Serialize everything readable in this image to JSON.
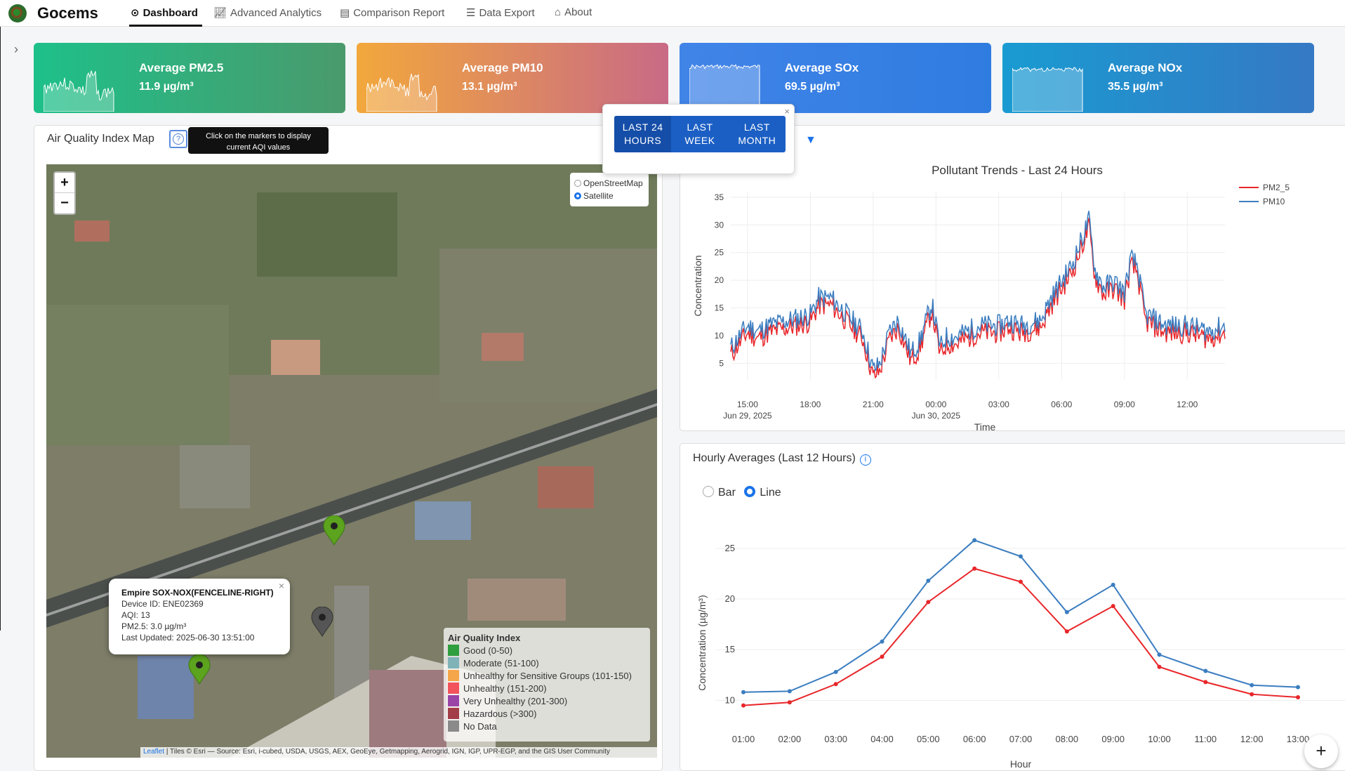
{
  "app": {
    "name": "Gocems"
  },
  "nav": [
    {
      "label": "Dashboard",
      "icon": "dashboard-icon",
      "active": true
    },
    {
      "label": "Advanced Analytics",
      "icon": "chart-line-icon"
    },
    {
      "label": "Comparison Report",
      "icon": "report-icon"
    },
    {
      "label": "Data Export",
      "icon": "database-icon"
    },
    {
      "label": "About",
      "icon": "building-icon"
    }
  ],
  "cards": [
    {
      "title": "Average PM2.5",
      "value": "11.9 µg/m³",
      "colors": [
        "#1ec08a",
        "#4a9a6c"
      ]
    },
    {
      "title": "Average PM10",
      "value": "13.1 µg/m³",
      "colors": [
        "#f2a83c",
        "#c96a86"
      ]
    },
    {
      "title": "Average SOx",
      "value": "69.5 µg/m³",
      "colors": [
        "#4184e8",
        "#2f7ce0"
      ]
    },
    {
      "title": "Average NOx",
      "value": "35.5 µg/m³",
      "colors": [
        "#1a9bd2",
        "#3579c4"
      ]
    }
  ],
  "map": {
    "title": "Air Quality Index Map",
    "help_tooltip": "Click on the markers to display current AQI values",
    "zoom_in": "+",
    "zoom_out": "−",
    "layers": [
      "OpenStreetMap",
      "Satellite"
    ],
    "selected_layer": "Satellite",
    "legend": {
      "title": "Air Quality Index",
      "items": [
        {
          "label": "Good (0-50)",
          "color": "#2e9e3e"
        },
        {
          "label": "Moderate (51-100)",
          "color": "#7fb3b8"
        },
        {
          "label": "Unhealthy for Sensitive Groups (101-150)",
          "color": "#f5a54a"
        },
        {
          "label": "Unhealthy (151-200)",
          "color": "#f2525c"
        },
        {
          "label": "Very Unhealthy (201-300)",
          "color": "#9b44a8"
        },
        {
          "label": "Hazardous (>300)",
          "color": "#a33d48"
        },
        {
          "label": "No Data",
          "color": "#8a8a8a"
        }
      ]
    },
    "popup": {
      "station": "Empire SOX-NOX(FENCELINE-RIGHT)",
      "device": "Device ID: ENE02369",
      "aqi": "AQI: 13",
      "pm": "PM2.5: 3.0 µg/m³",
      "updated": "Last Updated: 2025-06-30 13:51:00",
      "close": "×"
    },
    "attribution_link": "Leaflet",
    "attribution": "| Tiles © Esri — Source: Esri, i-cubed, USDA, USGS, AEX, GeoEye, Getmapping, Aerogrid, IGN, IGP, UPR-EGP, and the GIS User Community"
  },
  "time_range": {
    "options": [
      "LAST 24\nHOURS",
      "LAST\nWEEK",
      "LAST\nMONTH"
    ],
    "selected": 0,
    "close": "×"
  },
  "trend_chart": {
    "title": "Pollutant Trends - Last 24 Hours",
    "xlabel": "Time",
    "ylabel": "Concentration",
    "x_ticks": [
      "15:00\nJun 29, 2025",
      "18:00",
      "21:00",
      "00:00\nJun 30, 2025",
      "03:00",
      "06:00",
      "09:00",
      "12:00"
    ],
    "y_ticks": [
      5,
      10,
      15,
      20,
      25,
      30,
      35
    ],
    "series": [
      {
        "name": "PM2_5",
        "color": "#e8262a"
      },
      {
        "name": "PM10",
        "color": "#3b7dc0"
      }
    ],
    "ylim": [
      2,
      36
    ],
    "keypoints": [
      [
        14.2,
        7
      ],
      [
        15,
        11
      ],
      [
        15.5,
        10
      ],
      [
        16,
        11
      ],
      [
        17,
        12
      ],
      [
        18,
        13
      ],
      [
        18.4,
        16
      ],
      [
        19,
        16
      ],
      [
        19.5,
        14
      ],
      [
        20,
        12
      ],
      [
        20.5,
        10
      ],
      [
        21,
        3
      ],
      [
        21.3,
        4
      ],
      [
        21.8,
        10
      ],
      [
        22.2,
        12
      ],
      [
        22.8,
        6
      ],
      [
        23.2,
        8
      ],
      [
        23.8,
        15
      ],
      [
        24.2,
        7
      ],
      [
        24.5,
        9
      ],
      [
        25,
        9
      ],
      [
        26,
        11
      ],
      [
        27,
        11
      ],
      [
        27.5,
        12
      ],
      [
        28,
        11
      ],
      [
        29,
        12
      ],
      [
        29.5,
        16
      ],
      [
        30,
        19
      ],
      [
        30.5,
        22
      ],
      [
        31,
        27
      ],
      [
        31.3,
        30
      ],
      [
        31.6,
        21
      ],
      [
        32,
        18
      ],
      [
        32.5,
        19
      ],
      [
        33,
        17
      ],
      [
        33.3,
        23
      ],
      [
        33.6,
        22
      ],
      [
        34,
        13
      ],
      [
        35,
        11
      ],
      [
        36,
        11
      ],
      [
        37,
        10
      ],
      [
        37.8,
        11
      ]
    ]
  },
  "hourly_chart": {
    "title": "Hourly Averages (Last 12 Hours)",
    "modes": [
      "Bar",
      "Line"
    ],
    "selected_mode": "Line",
    "xlabel": "Hour",
    "ylabel": "Concentration (µg/m³)",
    "categories": [
      "01:00",
      "02:00",
      "03:00",
      "04:00",
      "05:00",
      "06:00",
      "07:00",
      "08:00",
      "09:00",
      "10:00",
      "11:00",
      "12:00",
      "13:00"
    ],
    "series": [
      {
        "name": "PM2_5",
        "color": "#e8262a",
        "values": [
          9.5,
          9.8,
          11.6,
          14.3,
          19.7,
          23.0,
          21.7,
          16.8,
          19.3,
          13.3,
          11.8,
          10.6,
          10.3
        ]
      },
      {
        "name": "PM10",
        "color": "#3b7dc0",
        "values": [
          10.8,
          10.9,
          12.8,
          15.8,
          21.8,
          25.8,
          24.2,
          18.7,
          21.4,
          14.5,
          12.9,
          11.5,
          11.3
        ]
      }
    ],
    "y_ticks": [
      10,
      15,
      20,
      25
    ],
    "ylim": [
      8.5,
      27
    ]
  }
}
